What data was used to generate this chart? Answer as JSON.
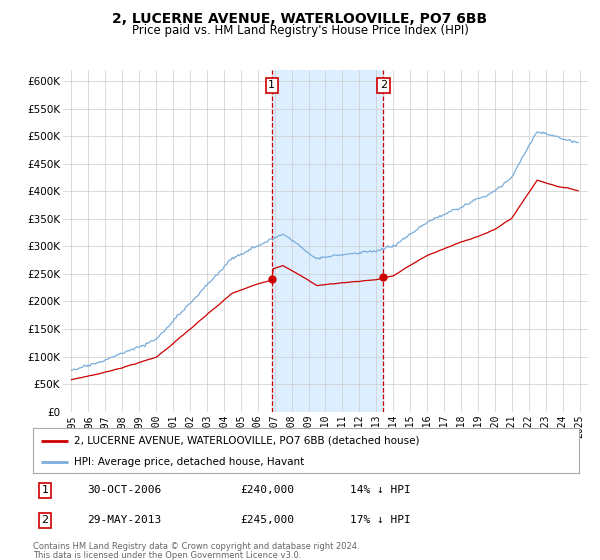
{
  "title": "2, LUCERNE AVENUE, WATERLOOVILLE, PO7 6BB",
  "subtitle": "Price paid vs. HM Land Registry's House Price Index (HPI)",
  "legend_label_red": "2, LUCERNE AVENUE, WATERLOOVILLE, PO7 6BB (detached house)",
  "legend_label_blue": "HPI: Average price, detached house, Havant",
  "transaction1_date": "30-OCT-2006",
  "transaction1_price": "£240,000",
  "transaction1_hpi": "14% ↓ HPI",
  "transaction1_year": 2006.83,
  "transaction1_value": 240000,
  "transaction2_date": "29-MAY-2013",
  "transaction2_price": "£245,000",
  "transaction2_hpi": "17% ↓ HPI",
  "transaction2_year": 2013.41,
  "transaction2_value": 245000,
  "footer1": "Contains HM Land Registry data © Crown copyright and database right 2024.",
  "footer2": "This data is licensed under the Open Government Licence v3.0.",
  "ylim_min": 0,
  "ylim_max": 620000,
  "xlim_min": 1994.5,
  "xlim_max": 2025.5,
  "red_color": "#cc0000",
  "blue_color": "#7aaddb",
  "shade_color": "#ddeeff",
  "grid_color": "#cccccc",
  "bg_color": "#ffffff"
}
